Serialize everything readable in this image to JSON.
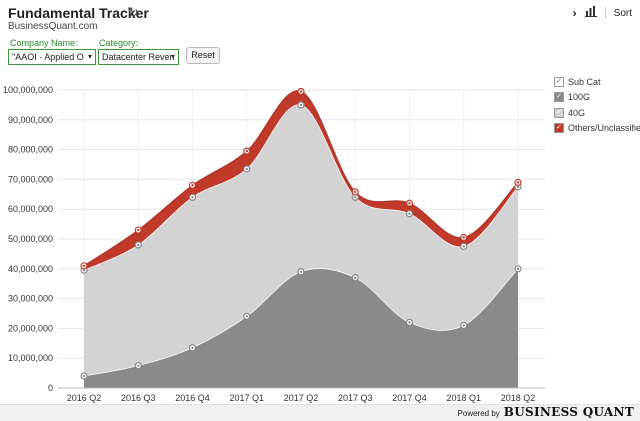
{
  "header": {
    "title": "Fundamental Tracker",
    "subtitle": "BusinessQuant.com",
    "sort_label": "Sort"
  },
  "filters": {
    "company_label": "Company Name:",
    "company_value": "\"AAOI - Applied O",
    "category_label": "Category:",
    "category_value": "Datacenter Reven",
    "reset_label": "Reset"
  },
  "legend": {
    "items": [
      {
        "label": "Sub Cat",
        "color": "#ffffff",
        "checked": true
      },
      {
        "label": "100G",
        "color": "#8a8a8a",
        "checked": true
      },
      {
        "label": "40G",
        "color": "#d3d3d3",
        "checked": true
      },
      {
        "label": "Others/Unclassified",
        "color": "#c0392b",
        "checked": true
      }
    ]
  },
  "footer": {
    "powered_by": "Powered by",
    "brand": "BUSINESS QUANT"
  },
  "chart_data": {
    "type": "area",
    "stacked": true,
    "categories": [
      "2016 Q2",
      "2016 Q3",
      "2016 Q4",
      "2017 Q1",
      "2017 Q2",
      "2017 Q3",
      "2017 Q4",
      "2018 Q1",
      "2018 Q2"
    ],
    "ylim": [
      0,
      100000000
    ],
    "yticks": [
      0,
      10000000,
      20000000,
      30000000,
      40000000,
      50000000,
      60000000,
      70000000,
      80000000,
      90000000,
      100000000
    ],
    "ytick_labels": [
      "0",
      "10,000,000",
      "20,000,000",
      "30,000,000",
      "40,000,000",
      "50,000,000",
      "60,000,000",
      "70,000,000",
      "80,000,000",
      "90,000,000",
      "100,000,000"
    ],
    "grid": true,
    "legend_position": "right",
    "series": [
      {
        "name": "100G",
        "color": "#8a8a8a",
        "values": [
          4000000,
          7500000,
          13500000,
          24000000,
          39000000,
          37000000,
          22000000,
          21000000,
          40000000
        ]
      },
      {
        "name": "40G",
        "color": "#d3d3d3",
        "values": [
          35500000,
          40500000,
          50500000,
          49500000,
          56000000,
          27000000,
          36500000,
          26500000,
          27500000
        ]
      },
      {
        "name": "Others/Unclassified",
        "color": "#c0392b",
        "values": [
          1500000,
          5000000,
          4000000,
          6000000,
          4500000,
          1800000,
          3500000,
          3000000,
          1500000
        ]
      }
    ]
  }
}
